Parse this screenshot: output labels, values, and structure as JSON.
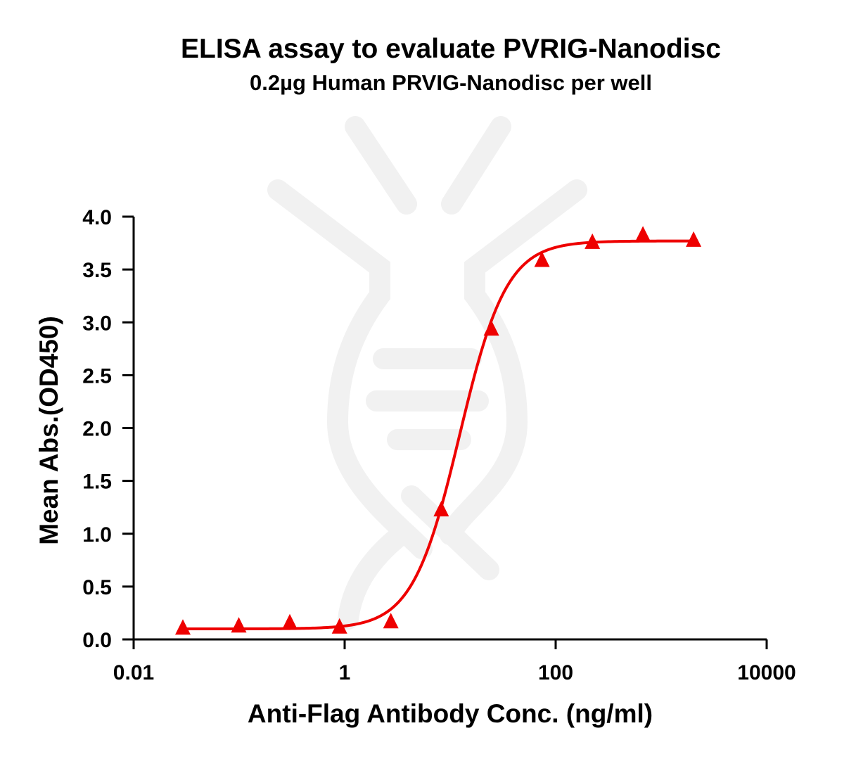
{
  "chart_data": {
    "type": "scatter",
    "title": "ELISA assay to evaluate PVRIG-Nanodisc",
    "subtitle": "0.2µg Human PRVIG-Nanodisc per well",
    "xlabel": "Anti-Flag Antibody Conc. (ng/ml)",
    "ylabel": "Mean Abs.(OD450)",
    "x_scale": "log",
    "xlim": [
      0.01,
      10000
    ],
    "ylim": [
      0,
      4.0
    ],
    "x_ticks": [
      0.01,
      1,
      100,
      10000
    ],
    "x_tick_labels": [
      "0.01",
      "1",
      "100",
      "10000"
    ],
    "y_ticks": [
      0.0,
      0.5,
      1.0,
      1.5,
      2.0,
      2.5,
      3.0,
      3.5,
      4.0
    ],
    "y_tick_labels": [
      "0.0",
      "0.5",
      "1.0",
      "1.5",
      "2.0",
      "2.5",
      "3.0",
      "3.5",
      "4.0"
    ],
    "grid": false,
    "legend": "none",
    "series": [
      {
        "marker": "triangle",
        "color": "#ee0000",
        "x": [
          0.0293,
          0.0992,
          0.302,
          0.894,
          2.74,
          8.23,
          24.6,
          74.3,
          223,
          672,
          2030
        ],
        "y": [
          0.1,
          0.12,
          0.15,
          0.11,
          0.16,
          1.22,
          2.93,
          3.58,
          3.75,
          3.82,
          3.77
        ]
      }
    ],
    "fit": {
      "type": "4PL",
      "color": "#ee0000",
      "bottom": 0.1,
      "top": 3.77,
      "ec50": 12.3,
      "hill": 1.95,
      "x_range": [
        0.0293,
        2030
      ]
    }
  }
}
